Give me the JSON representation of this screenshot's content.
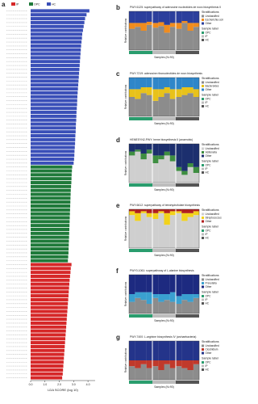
{
  "panel_a": {
    "letter": "a",
    "x_label": "LDA SCORE (log 10)",
    "xlim": [
      0,
      4.5
    ],
    "xticks": [
      {
        "value": 0,
        "label": "0.0"
      },
      {
        "value": 1,
        "label": "1.0"
      },
      {
        "value": 2,
        "label": "2.0"
      },
      {
        "value": 3,
        "label": "3.0"
      },
      {
        "value": 4,
        "label": "4.0"
      }
    ],
    "groups": [
      {
        "name": "IP",
        "color": "#d62728",
        "values": [
          2.85,
          2.8,
          2.78,
          2.75,
          2.72,
          2.7,
          2.68,
          2.66,
          2.64,
          2.62,
          2.6,
          2.58,
          2.56,
          2.54,
          2.52,
          2.5,
          2.48,
          2.46,
          2.44,
          2.42,
          2.4,
          2.38,
          2.36,
          2.34,
          2.32,
          2.3,
          2.28,
          2.26,
          2.24,
          2.2
        ]
      },
      {
        "name": "OPC",
        "color": "#1f7a3a",
        "values": [
          2.9,
          2.88,
          2.86,
          2.85,
          2.84,
          2.82,
          2.8,
          2.79,
          2.78,
          2.77,
          2.76,
          2.75,
          2.74,
          2.73,
          2.72,
          2.71,
          2.7,
          2.69,
          2.68,
          2.67,
          2.66,
          2.65,
          2.64,
          2.62,
          2.6
        ]
      },
      {
        "name": "HC",
        "color": "#3a4fb8",
        "values": [
          4.1,
          3.9,
          3.8,
          3.75,
          3.7,
          3.65,
          3.6,
          3.58,
          3.55,
          3.52,
          3.5,
          3.48,
          3.46,
          3.44,
          3.42,
          3.4,
          3.38,
          3.36,
          3.34,
          3.32,
          3.3,
          3.28,
          3.26,
          3.25,
          3.24,
          3.22,
          3.2,
          3.19,
          3.18,
          3.16,
          3.15,
          3.14,
          3.12,
          3.11,
          3.1,
          3.08,
          3.06,
          3.05,
          3.03,
          3.0
        ]
      }
    ],
    "order": [
      2,
      1,
      0
    ]
  },
  "panels": [
    {
      "letter": "b",
      "title": "PWY-6125: superpathway of adenosine nucleotides de novo biosynthesis II",
      "y_label": "Relative contributions",
      "x_label": "Samples (N=90)",
      "legend_title": "Stratifications",
      "ylim": [
        0,
        1
      ],
      "series": [
        {
          "name": "Unclassified",
          "color": "#8c8c8c",
          "values": [
            0.55,
            0.6,
            0.5,
            0.65,
            0.58,
            0.62,
            0.45,
            0.6,
            0.55,
            0.7,
            0.5,
            0.6
          ]
        },
        {
          "name": "Escherichia coli",
          "color": "#f08c1e",
          "values": [
            0.15,
            0.1,
            0.2,
            0.08,
            0.12,
            0.1,
            0.2,
            0.1,
            0.15,
            0.05,
            0.2,
            0.1
          ]
        },
        {
          "name": "Other",
          "color": "#2c3f9c",
          "values": [
            0.3,
            0.3,
            0.3,
            0.27,
            0.3,
            0.28,
            0.35,
            0.3,
            0.3,
            0.25,
            0.3,
            0.3
          ]
        }
      ],
      "sample_label": "Sample label",
      "sample_groups": [
        {
          "name": "OPC",
          "color": "#2a9d6e",
          "count": 4
        },
        {
          "name": "IP",
          "color": "#bdbdbd",
          "count": 4
        },
        {
          "name": "HC",
          "color": "#555555",
          "count": 4
        }
      ]
    },
    {
      "letter": "c",
      "title": "PWY-7219: adenosine ribonucleotides de novo biosynthesis",
      "y_label": "Relative contributions",
      "x_label": "Samples (N=90)",
      "legend_title": "Stratifications",
      "ylim": [
        0,
        1
      ],
      "series": [
        {
          "name": "Unclassified",
          "color": "#8c8c8c",
          "values": [
            0.5,
            0.45,
            0.6,
            0.55,
            0.4,
            0.5,
            0.6,
            0.45,
            0.5,
            0.55,
            0.6,
            0.5
          ]
        },
        {
          "name": "Bacteroides",
          "color": "#e8c21a",
          "values": [
            0.2,
            0.25,
            0.15,
            0.2,
            0.3,
            0.2,
            0.15,
            0.25,
            0.2,
            0.2,
            0.15,
            0.2
          ]
        },
        {
          "name": "Other",
          "color": "#2f86c9",
          "values": [
            0.3,
            0.3,
            0.25,
            0.25,
            0.3,
            0.3,
            0.25,
            0.3,
            0.3,
            0.25,
            0.25,
            0.3
          ]
        }
      ],
      "sample_label": "Sample label",
      "sample_groups": [
        {
          "name": "OPC",
          "color": "#2a9d6e",
          "count": 4
        },
        {
          "name": "IP",
          "color": "#bdbdbd",
          "count": 4
        },
        {
          "name": "HC",
          "color": "#555555",
          "count": 4
        }
      ]
    },
    {
      "letter": "d",
      "title": "HEMESYN2-PWY: heme biosynthesis II (anaerobic)",
      "y_label": "Relative contributions",
      "x_label": "Samples (N=90)",
      "legend_title": "Stratifications",
      "ylim": [
        0,
        1
      ],
      "series": [
        {
          "name": "Unclassified",
          "color": "#cfcfcf",
          "values": [
            0.7,
            0.8,
            0.6,
            0.75,
            0.5,
            0.6,
            0.7,
            0.55,
            0.3,
            0.2,
            0.4,
            0.25
          ]
        },
        {
          "name": "Veillonella",
          "color": "#3e8e41",
          "values": [
            0.1,
            0.05,
            0.15,
            0.1,
            0.2,
            0.1,
            0.1,
            0.15,
            0.1,
            0.1,
            0.1,
            0.15
          ]
        },
        {
          "name": "Other",
          "color": "#1c2f6e",
          "values": [
            0.2,
            0.15,
            0.25,
            0.15,
            0.3,
            0.3,
            0.2,
            0.3,
            0.6,
            0.7,
            0.5,
            0.6
          ]
        }
      ],
      "sample_label": "Sample label",
      "sample_groups": [
        {
          "name": "OPC",
          "color": "#2a9d6e",
          "count": 4
        },
        {
          "name": "IP",
          "color": "#bdbdbd",
          "count": 4
        },
        {
          "name": "HC",
          "color": "#555555",
          "count": 4
        }
      ]
    },
    {
      "letter": "e",
      "title": "PWY-6612: superpathway of tetrahydrofolate biosynthesis",
      "y_label": "Relative contributions",
      "x_label": "Samples (N=90)",
      "legend_title": "Stratifications",
      "ylim": [
        0,
        1
      ],
      "series": [
        {
          "name": "Unclassified",
          "color": "#cfcfcf",
          "values": [
            0.85,
            0.7,
            0.9,
            0.8,
            0.75,
            0.9,
            0.6,
            0.85,
            0.9,
            0.7,
            0.8,
            0.85
          ]
        },
        {
          "name": "Streptococcus",
          "color": "#f2d21b",
          "values": [
            0.1,
            0.2,
            0.05,
            0.1,
            0.15,
            0.05,
            0.3,
            0.1,
            0.05,
            0.2,
            0.1,
            0.1
          ]
        },
        {
          "name": "Other",
          "color": "#b21f1f",
          "values": [
            0.05,
            0.1,
            0.05,
            0.1,
            0.1,
            0.05,
            0.1,
            0.05,
            0.05,
            0.1,
            0.1,
            0.05
          ]
        }
      ],
      "sample_label": "Sample label",
      "sample_groups": [
        {
          "name": "OPC",
          "color": "#2a9d6e",
          "count": 4
        },
        {
          "name": "IP",
          "color": "#bdbdbd",
          "count": 4
        },
        {
          "name": "HC",
          "color": "#555555",
          "count": 4
        }
      ]
    },
    {
      "letter": "f",
      "title": "PWY0-1061: superpathway of L-alanine biosynthesis",
      "y_label": "Relative contributions",
      "x_label": "Samples (N=90)",
      "legend_title": "Stratifications",
      "ylim": [
        0,
        1
      ],
      "series": [
        {
          "name": "Unclassified",
          "color": "#8c8c8c",
          "values": [
            0.3,
            0.4,
            0.35,
            0.25,
            0.4,
            0.3,
            0.35,
            0.3,
            0.25,
            0.35,
            0.3,
            0.4
          ]
        },
        {
          "name": "Prevotella",
          "color": "#3aa0d0",
          "values": [
            0.2,
            0.15,
            0.2,
            0.3,
            0.1,
            0.2,
            0.15,
            0.25,
            0.2,
            0.15,
            0.2,
            0.1
          ]
        },
        {
          "name": "Other",
          "color": "#1d2a80",
          "values": [
            0.5,
            0.45,
            0.45,
            0.45,
            0.5,
            0.5,
            0.5,
            0.45,
            0.55,
            0.5,
            0.5,
            0.5
          ]
        }
      ],
      "sample_label": "Sample label",
      "sample_groups": [
        {
          "name": "OPC",
          "color": "#2a9d6e",
          "count": 4
        },
        {
          "name": "IP",
          "color": "#bdbdbd",
          "count": 4
        },
        {
          "name": "HC",
          "color": "#555555",
          "count": 4
        }
      ]
    },
    {
      "letter": "g",
      "title": "PWY-7400: L-arginine biosynthesis IV (archaebacteria)",
      "y_label": "Relative contributions",
      "x_label": "Samples (N=90)",
      "legend_title": "Stratifications",
      "ylim": [
        0,
        1
      ],
      "series": [
        {
          "name": "Unclassified",
          "color": "#8c8c8c",
          "values": [
            0.35,
            0.3,
            0.4,
            0.3,
            0.35,
            0.25,
            0.4,
            0.3,
            0.35,
            0.3,
            0.25,
            0.4
          ]
        },
        {
          "name": "Clostridium",
          "color": "#c0392b",
          "values": [
            0.15,
            0.2,
            0.1,
            0.2,
            0.15,
            0.25,
            0.1,
            0.2,
            0.15,
            0.2,
            0.25,
            0.1
          ]
        },
        {
          "name": "Other",
          "color": "#24348a",
          "values": [
            0.5,
            0.5,
            0.5,
            0.5,
            0.5,
            0.5,
            0.5,
            0.5,
            0.5,
            0.5,
            0.5,
            0.5
          ]
        }
      ],
      "sample_label": "Sample label",
      "sample_groups": [
        {
          "name": "OPC",
          "color": "#2a9d6e",
          "count": 4
        },
        {
          "name": "IP",
          "color": "#bdbdbd",
          "count": 4
        },
        {
          "name": "HC",
          "color": "#555555",
          "count": 4
        }
      ]
    }
  ]
}
